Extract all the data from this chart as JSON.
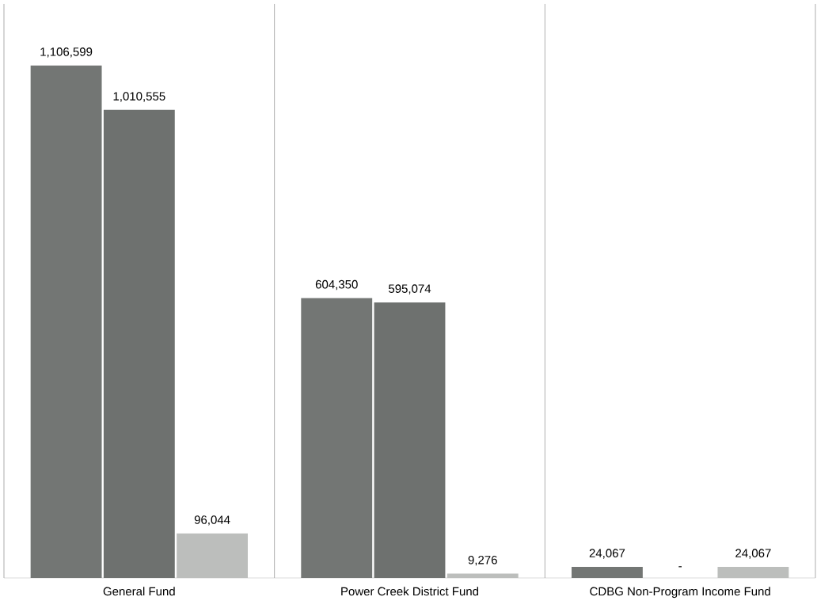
{
  "chart_data": {
    "type": "bar",
    "categories": [
      "General Fund",
      "Power Creek District Fund",
      "CDBG Non-Program Income Fund"
    ],
    "series": [
      {
        "color": "#737674",
        "values": [
          1106599,
          604350,
          24067
        ],
        "value_labels": [
          "1,106,599",
          "604,350",
          "24,067"
        ]
      },
      {
        "color": "#6e716f",
        "values": [
          1010555,
          595074,
          0
        ],
        "value_labels": [
          "1,010,555",
          "595,074",
          "-"
        ]
      },
      {
        "color": "#bcbebc",
        "values": [
          96044,
          9276,
          24067
        ],
        "value_labels": [
          "96,044",
          "9,276",
          "24,067"
        ]
      }
    ]
  }
}
